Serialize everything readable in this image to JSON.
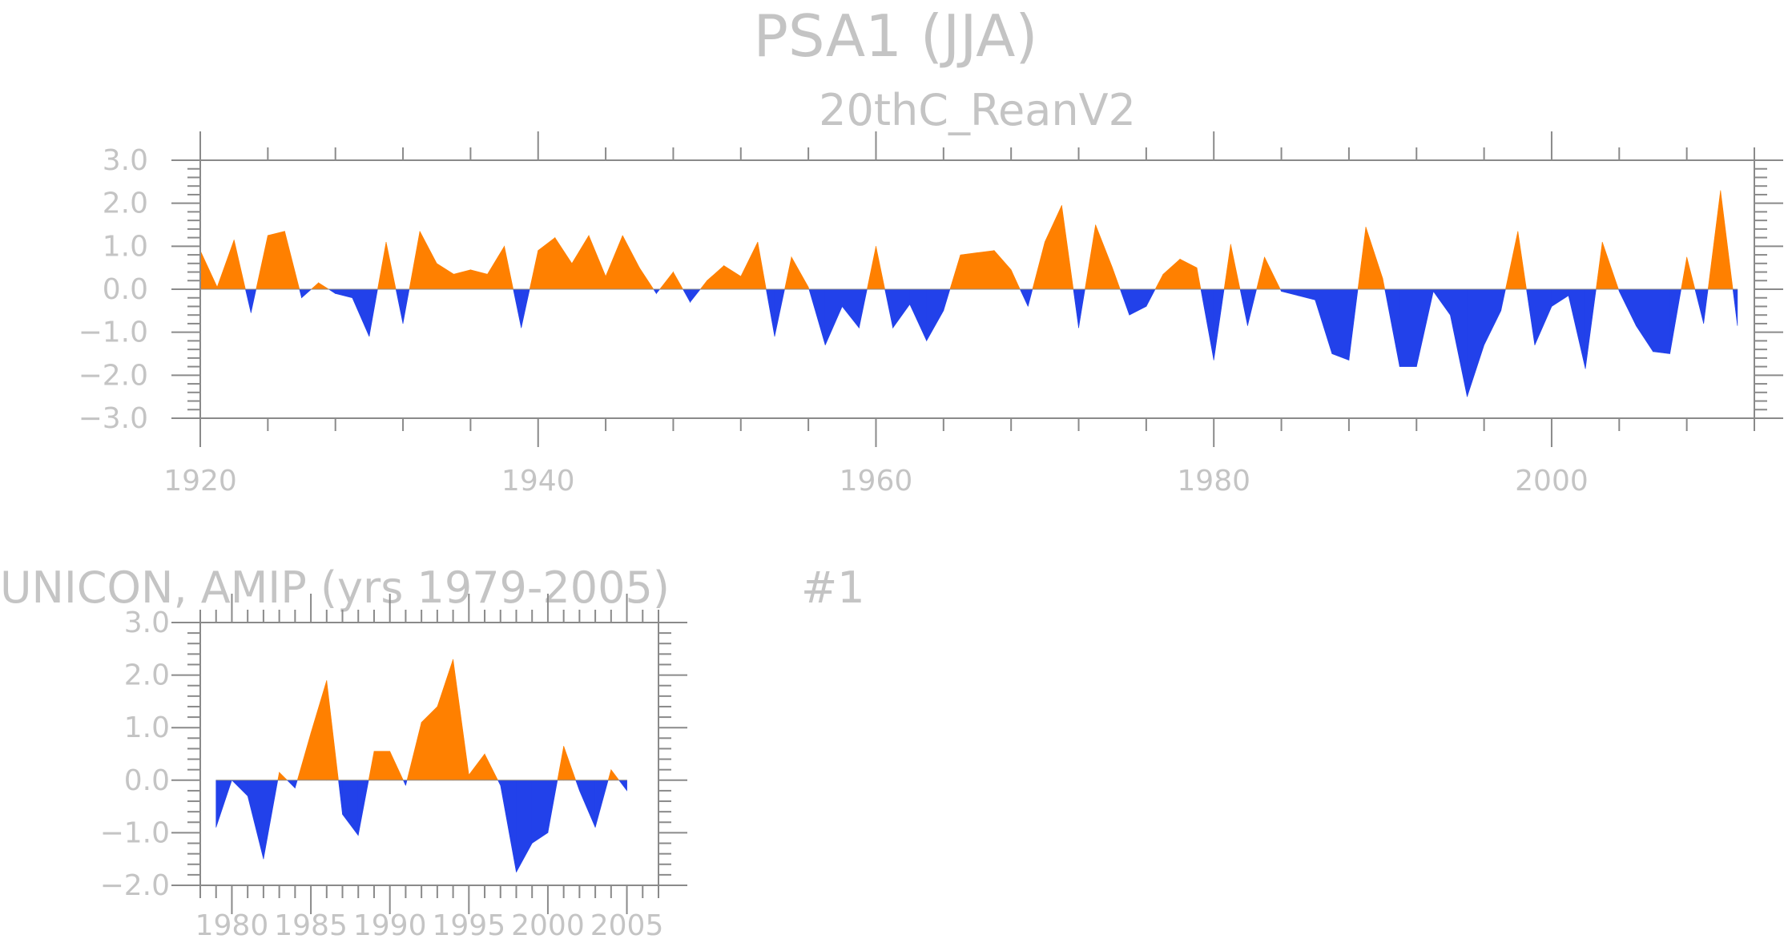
{
  "title": "PSA1 (JJA)",
  "charts": [
    {
      "subtitle": "20thC_ReanV2",
      "right_label": "",
      "x_tick_labels": [
        "1920",
        "1940",
        "1960",
        "1980",
        "2000"
      ],
      "y_tick_labels": [
        "3.0",
        "2.0",
        "1.0",
        "0.0",
        "−1.0",
        "−2.0",
        "−3.0"
      ]
    },
    {
      "subtitle": "UNICON, AMIP (yrs 1979-2005)",
      "right_label": "#1",
      "x_tick_labels": [
        "1980",
        "1985",
        "1990",
        "1995",
        "2000",
        "2005"
      ],
      "y_tick_labels": [
        "3.0",
        "2.0",
        "1.0",
        "0.0",
        "−1.0",
        "−2.0"
      ]
    }
  ],
  "colors": {
    "positive": "#ff8000",
    "negative": "#2241ea",
    "text": "#c4c4c4",
    "axis": "#8a8a8a"
  },
  "chart_data": [
    {
      "type": "area",
      "title": "PSA1 (JJA)",
      "subtitle": "20thC_ReanV2",
      "xlabel": "",
      "ylabel": "",
      "xlim": [
        1920,
        2012
      ],
      "ylim": [
        -3.0,
        3.0
      ],
      "x_ticks": [
        1920,
        1940,
        1960,
        1980,
        2000
      ],
      "y_ticks": [
        3.0,
        2.0,
        1.0,
        0.0,
        -1.0,
        -2.0,
        -3.0
      ],
      "x_start": 1920,
      "values": [
        0.9,
        0.05,
        1.15,
        -0.55,
        1.25,
        1.35,
        -0.2,
        0.15,
        -0.1,
        -0.2,
        -1.1,
        1.1,
        -0.8,
        1.35,
        0.6,
        0.35,
        0.45,
        0.35,
        1.0,
        -0.9,
        0.9,
        1.2,
        0.6,
        1.25,
        0.3,
        1.25,
        0.5,
        -0.1,
        0.4,
        -0.3,
        0.2,
        0.55,
        0.3,
        1.1,
        -1.1,
        0.75,
        0.05,
        -1.3,
        -0.4,
        -0.9,
        1.0,
        -0.9,
        -0.35,
        -1.2,
        -0.5,
        0.8,
        0.85,
        0.9,
        0.45,
        -0.4,
        1.1,
        1.95,
        -0.9,
        1.5,
        0.5,
        -0.6,
        -0.4,
        0.35,
        0.7,
        0.5,
        -1.65,
        1.05,
        -0.85,
        0.75,
        -0.05,
        -0.15,
        -0.25,
        -1.5,
        -1.65,
        1.45,
        0.25,
        -1.8,
        -1.8,
        -0.05,
        -0.6,
        -2.5,
        -1.3,
        -0.5,
        1.35,
        -1.3,
        -0.4,
        -0.15,
        -1.85,
        1.1,
        -0.05,
        -0.85,
        -1.45,
        -1.5,
        0.75,
        -0.8,
        2.3,
        -0.85
      ],
      "series_colors": {
        "positive": "#ff8000",
        "negative": "#2241ea"
      }
    },
    {
      "type": "area",
      "title": "UNICON, AMIP (yrs 1979-2005)",
      "subtitle": "#1",
      "xlabel": "",
      "ylabel": "",
      "xlim": [
        1978,
        2007
      ],
      "ylim": [
        -2.0,
        3.0
      ],
      "x_ticks": [
        1980,
        1985,
        1990,
        1995,
        2000,
        2005
      ],
      "y_ticks": [
        3.0,
        2.0,
        1.0,
        0.0,
        -1.0,
        -2.0
      ],
      "x_start": 1979,
      "values": [
        -0.9,
        0.0,
        -0.3,
        -1.5,
        0.15,
        -0.15,
        0.9,
        1.9,
        -0.65,
        -1.05,
        0.55,
        0.55,
        -0.1,
        1.1,
        1.4,
        2.3,
        0.1,
        0.5,
        -0.1,
        -1.75,
        -1.2,
        -1.0,
        0.65,
        -0.2,
        -0.9,
        0.2,
        -0.2
      ],
      "series_colors": {
        "positive": "#ff8000",
        "negative": "#2241ea"
      }
    }
  ]
}
